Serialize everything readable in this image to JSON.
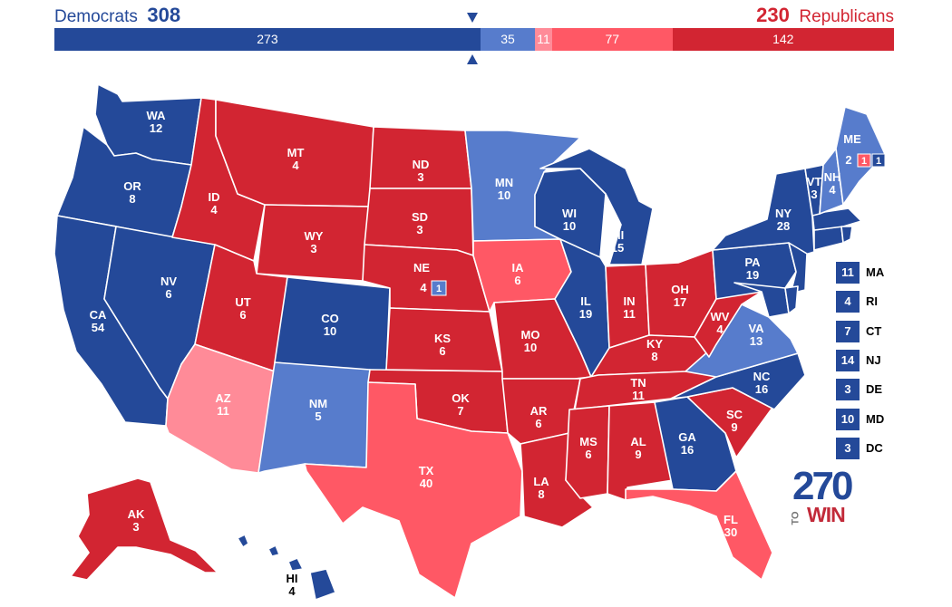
{
  "header": {
    "dem_label": "Democrats",
    "dem_total": "308",
    "rep_total": "230",
    "rep_label": "Republicans"
  },
  "bar": [
    {
      "value": "273",
      "votes": 273,
      "color": "#244999"
    },
    {
      "value": "35",
      "votes": 35,
      "color": "#577ccc"
    },
    {
      "value": "11",
      "votes": 11,
      "color": "#ff8b98"
    },
    {
      "value": "77",
      "votes": 77,
      "color": "#ff5865"
    },
    {
      "value": "142",
      "votes": 142,
      "color": "#d22532"
    }
  ],
  "colors": {
    "safe_dem": "#244999",
    "likely_dem": "#577ccc",
    "lean_rep": "#ff8b98",
    "likely_rep": "#ff5865",
    "safe_rep": "#d22532"
  },
  "states": {
    "WA": "12",
    "OR": "8",
    "CA": "54",
    "NV": "6",
    "ID": "4",
    "MT": "4",
    "WY": "3",
    "UT": "6",
    "AZ": "11",
    "CO": "10",
    "NM": "5",
    "ND": "3",
    "SD": "3",
    "NE": "4",
    "NE_split": "1",
    "KS": "6",
    "OK": "7",
    "TX": "40",
    "MN": "10",
    "IA": "6",
    "MO": "10",
    "AR": "6",
    "LA": "8",
    "WI": "10",
    "IL": "19",
    "MI": "15",
    "IN": "11",
    "OH": "17",
    "KY": "8",
    "TN": "11",
    "MS": "6",
    "AL": "9",
    "GA": "16",
    "FL": "30",
    "SC": "9",
    "NC": "16",
    "VA": "13",
    "WV": "4",
    "PA": "19",
    "NY": "28",
    "VT": "3",
    "NH": "4",
    "ME": "2",
    "ME_split_rep": "1",
    "ME_split_dem": "1",
    "AK": "3",
    "HI": "4"
  },
  "small_states": [
    {
      "abbr": "MA",
      "votes": "11"
    },
    {
      "abbr": "RI",
      "votes": "4"
    },
    {
      "abbr": "CT",
      "votes": "7"
    },
    {
      "abbr": "NJ",
      "votes": "14"
    },
    {
      "abbr": "DE",
      "votes": "3"
    },
    {
      "abbr": "MD",
      "votes": "10"
    },
    {
      "abbr": "DC",
      "votes": "3"
    }
  ],
  "logo": {
    "number": "270",
    "to": "TO",
    "win": "WIN"
  }
}
